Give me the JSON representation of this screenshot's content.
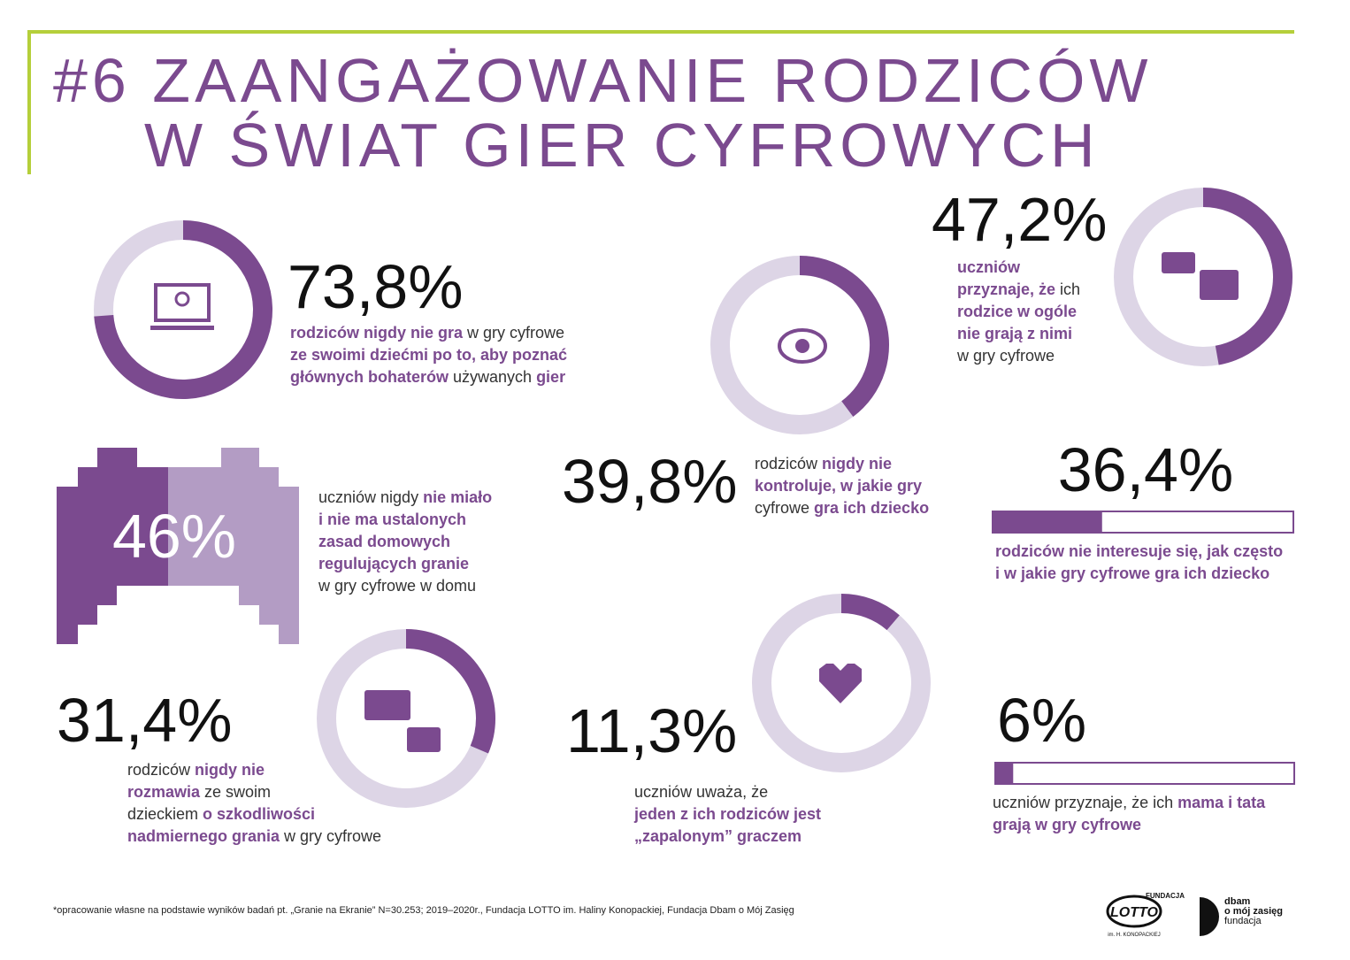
{
  "header": {
    "title_lines": [
      "#6 ZAANGAŻOWANIE RODZICÓW",
      "W ŚWIAT GIER CYFROWYCH"
    ]
  },
  "stats": [
    {
      "type": "donut",
      "value": 73.8,
      "value_label": "73,8%",
      "text": [
        [
          {
            "text": "rodziców nigdy nie gra",
            "bold": true
          },
          {
            "text": " w gry cyfrowe",
            "bold": false
          }
        ],
        [
          {
            "text": "ze swoimi dziećmi po to, aby poznać",
            "bold": true
          }
        ],
        [
          {
            "text": "głównych bohaterów",
            "bold": true
          },
          {
            "text": " używanych ",
            "bold": false
          },
          {
            "text": "gier",
            "bold": true
          }
        ]
      ]
    },
    {
      "type": "donut",
      "value": 39.8,
      "value_label": "39,8%",
      "text": [
        [
          {
            "text": "rodziców ",
            "bold": false
          },
          {
            "text": "nigdy nie",
            "bold": true
          }
        ],
        [
          {
            "text": "kontroluje, w jakie gry",
            "bold": true
          }
        ],
        [
          {
            "text": "cyfrowe ",
            "bold": false
          },
          {
            "text": "gra ich dziecko",
            "bold": true
          }
        ]
      ]
    },
    {
      "type": "donut",
      "value": 47.2,
      "value_label": "47,2%",
      "text": [
        [
          {
            "text": "uczniów",
            "bold": true
          }
        ],
        [
          {
            "text": "przyznaje, że",
            "bold": true
          },
          {
            "text": " ich",
            "bold": false
          }
        ],
        [
          {
            "text": "rodzice w ogóle",
            "bold": true
          }
        ],
        [
          {
            "text": "nie grają z nimi",
            "bold": true
          }
        ],
        [
          {
            "text": "w gry cyfrowe",
            "bold": false
          }
        ]
      ]
    },
    {
      "type": "gamepad",
      "value": 46,
      "value_label": "46%",
      "text": [
        [
          {
            "text": "uczniów nigdy ",
            "bold": false
          },
          {
            "text": "nie miało",
            "bold": true
          }
        ],
        [
          {
            "text": "i nie ma ustalonych",
            "bold": true
          }
        ],
        [
          {
            "text": "zasad domowych",
            "bold": true
          }
        ],
        [
          {
            "text": "regulujących granie",
            "bold": true
          }
        ],
        [
          {
            "text": "w gry cyfrowe w domu",
            "bold": false
          }
        ]
      ]
    },
    {
      "type": "bar",
      "value": 36.4,
      "value_label": "36,4%",
      "text": [
        [
          {
            "text": "rodziców nie interesuje się, jak często",
            "bold": true
          }
        ],
        [
          {
            "text": "i w jakie gry cyfrowe gra ich dziecko",
            "bold": true
          }
        ]
      ]
    },
    {
      "type": "donut",
      "value": 31.4,
      "value_label": "31,4%",
      "text": [
        [
          {
            "text": "rodziców ",
            "bold": false
          },
          {
            "text": "nigdy nie",
            "bold": true
          }
        ],
        [
          {
            "text": "rozmawia",
            "bold": true
          },
          {
            "text": " ze swoim",
            "bold": false
          }
        ],
        [
          {
            "text": "dzieckiem ",
            "bold": false
          },
          {
            "text": "o szkodliwości",
            "bold": true
          }
        ],
        [
          {
            "text": "nadmiernego grania",
            "bold": true
          },
          {
            "text": " w gry cyfrowe",
            "bold": false
          }
        ]
      ]
    },
    {
      "type": "donut",
      "value": 11.3,
      "value_label": "11,3%",
      "text": [
        [
          {
            "text": "uczniów uważa, że",
            "bold": false
          }
        ],
        [
          {
            "text": "jeden z ich rodziców jest",
            "bold": true
          }
        ],
        [
          {
            "text": "„zapalonym” graczem",
            "bold": true
          }
        ]
      ]
    },
    {
      "type": "bar",
      "value": 6,
      "value_label": "6%",
      "text": [
        [
          {
            "text": "uczniów przyznaje, że ich ",
            "bold": false
          },
          {
            "text": "mama i tata",
            "bold": true
          }
        ],
        [
          {
            "text": "grają w gry cyfrowe",
            "bold": true
          }
        ]
      ]
    }
  ],
  "footer": {
    "note": "*opracowanie własne na podstawie wyników badań pt. „Granie na Ekranie” N=30.253; 2019–2020r., Fundacja LOTTO im. Haliny Konopackiej, Fundacja Dbam o Mój Zasięg",
    "logo_lotto": [
      "FUNDACJA",
      "LOTTO",
      "im. H. KONOPACKIEJ"
    ],
    "logo_dbam": [
      "dbam",
      "o mój zasięg",
      "fundacja"
    ]
  }
}
